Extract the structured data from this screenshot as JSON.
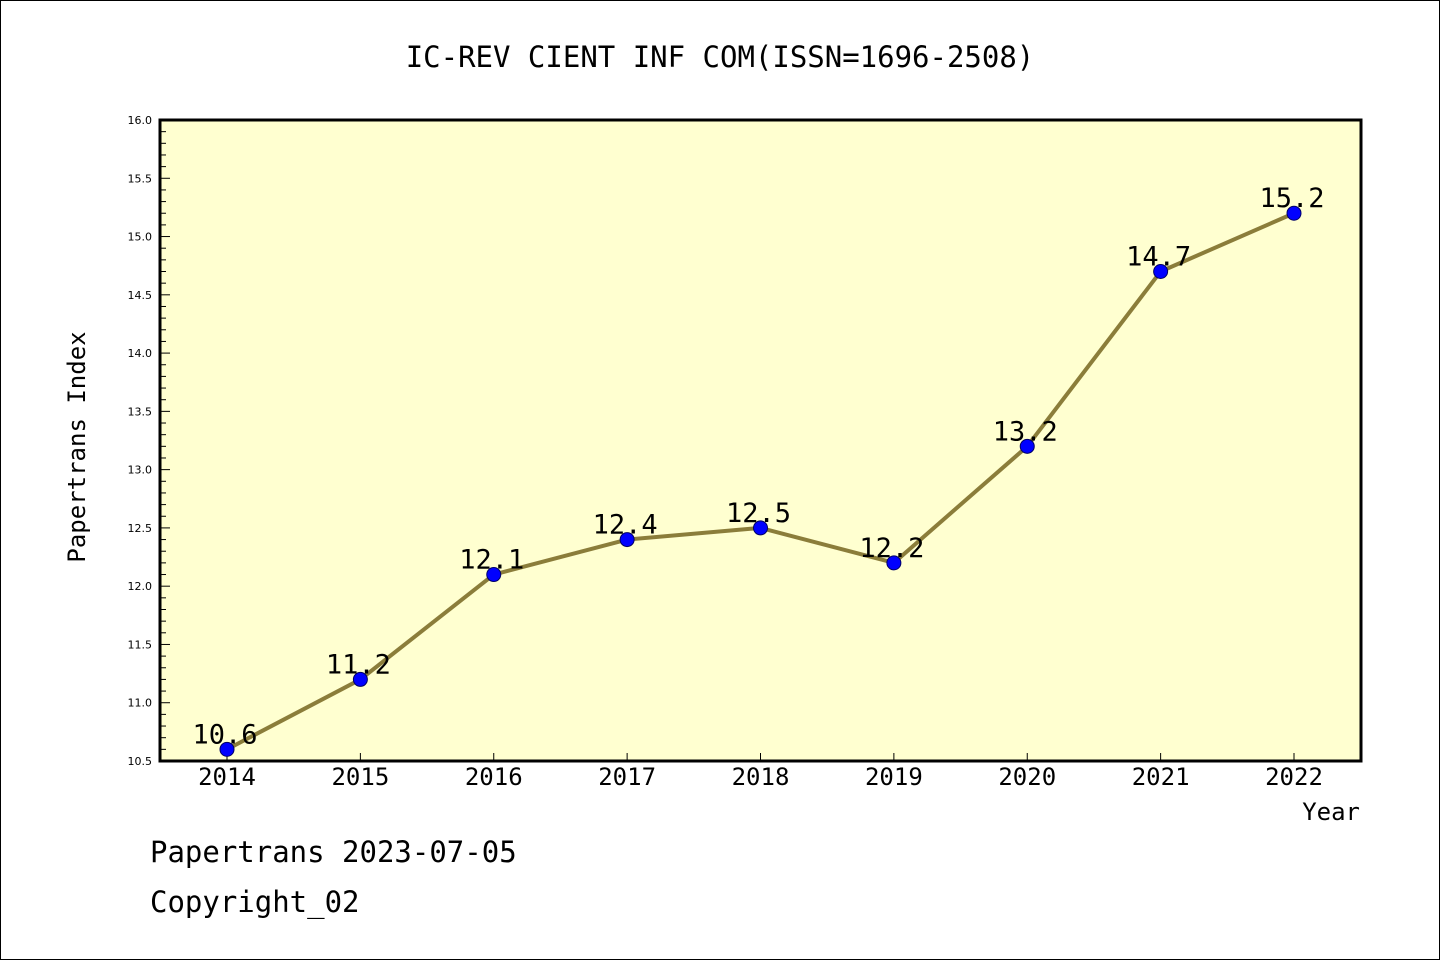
{
  "chart_data": {
    "type": "line",
    "title": "IC-REV CIENT INF COM(ISSN=1696-2508)",
    "xlabel": "Year",
    "ylabel": "Papertrans Index",
    "x": [
      "2014",
      "2015",
      "2016",
      "2017",
      "2018",
      "2019",
      "2020",
      "2021",
      "2022"
    ],
    "values": [
      10.6,
      11.2,
      12.1,
      12.4,
      12.5,
      12.2,
      13.2,
      14.7,
      15.2
    ],
    "data_labels": [
      "10.6",
      "11.2",
      "12.1",
      "12.4",
      "12.5",
      "12.2",
      "13.2",
      "14.7",
      "15.2"
    ],
    "ylim": [
      10.5,
      16.0
    ],
    "yticks": [
      "10.5",
      "11.0",
      "11.5",
      "12.0",
      "12.5",
      "13.0",
      "13.5",
      "14.0",
      "14.5",
      "15.0",
      "15.5",
      "16.0"
    ],
    "grid": false,
    "legend": "none",
    "colors": {
      "plot_background": "#FFFFD0",
      "line": "#8B7D3A",
      "marker": "#0000FF"
    }
  },
  "footer": {
    "stamp": "Papertrans 2023-07-05",
    "copyright": "Copyright_02"
  }
}
